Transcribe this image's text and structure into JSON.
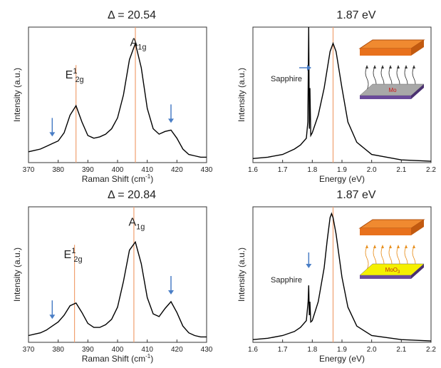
{
  "chart_data": [
    {
      "type": "line",
      "title": "Δ = 20.54",
      "x_label": "Raman Shift (cm",
      "x_label_sup": "-1",
      "x_label_end": ")",
      "y_label": "Intensity (a.u.)",
      "x": [
        370,
        372,
        374,
        376,
        378,
        380,
        382,
        384,
        386,
        388,
        390,
        392,
        394,
        396,
        398,
        400,
        402,
        404,
        406,
        408,
        410,
        412,
        414,
        416,
        418,
        420,
        422,
        424,
        426,
        428,
        430
      ],
      "values": [
        0.08,
        0.09,
        0.1,
        0.12,
        0.14,
        0.16,
        0.22,
        0.35,
        0.42,
        0.3,
        0.2,
        0.18,
        0.19,
        0.21,
        0.25,
        0.33,
        0.5,
        0.76,
        0.88,
        0.7,
        0.4,
        0.25,
        0.21,
        0.23,
        0.24,
        0.18,
        0.1,
        0.06,
        0.05,
        0.04,
        0.04
      ],
      "color": "#000000",
      "xlim": [
        370,
        430
      ],
      "ylim": [
        0,
        1
      ],
      "xticks": [
        370,
        380,
        390,
        400,
        410,
        420,
        430
      ],
      "vlines": [
        386,
        406
      ],
      "vline_color": "#f0a070",
      "annotations": [
        {
          "text": "E",
          "sup": "1",
          "sub": "2g"
        },
        {
          "text": "A",
          "sub": "1g"
        }
      ],
      "arrows_x": [
        378,
        418
      ],
      "arrow_color": "#4a7ec6"
    },
    {
      "type": "line",
      "title": "1.87 eV",
      "x_label": "Energy (eV)",
      "y_label": "Intensity (a.u.)",
      "x": [
        1.6,
        1.65,
        1.7,
        1.74,
        1.76,
        1.78,
        1.785,
        1.788,
        1.79,
        1.792,
        1.795,
        1.8,
        1.82,
        1.84,
        1.86,
        1.87,
        1.88,
        1.9,
        1.92,
        1.95,
        2.0,
        2.1,
        2.2
      ],
      "values": [
        0.03,
        0.04,
        0.06,
        0.1,
        0.13,
        0.18,
        0.3,
        1.0,
        0.25,
        0.55,
        0.2,
        0.22,
        0.35,
        0.55,
        0.82,
        0.88,
        0.82,
        0.55,
        0.3,
        0.15,
        0.06,
        0.02,
        0.01
      ],
      "color": "#000000",
      "xlim": [
        1.6,
        2.2
      ],
      "ylim": [
        0,
        1
      ],
      "xticks": [
        1.6,
        1.7,
        1.8,
        1.9,
        {
          "value": 2,
          "label": "2.0"
        },
        2.1,
        2.2
      ],
      "vlines": [
        1.87
      ],
      "vline_color": "#f0a070",
      "sapphire": "Sapphire",
      "inset": {
        "label": "Mo"
      }
    },
    {
      "type": "line",
      "title": "Δ = 20.84",
      "x_label": "Raman Shift (cm",
      "x_label_sup": "-1",
      "x_label_end": ")",
      "y_label": "Intensity (a.u.)",
      "x": [
        370,
        372,
        374,
        376,
        378,
        380,
        382,
        384,
        386,
        388,
        390,
        392,
        394,
        396,
        398,
        400,
        402,
        404,
        406,
        408,
        410,
        412,
        414,
        416,
        418,
        420,
        422,
        424,
        426,
        428,
        430
      ],
      "values": [
        0.05,
        0.06,
        0.07,
        0.09,
        0.12,
        0.15,
        0.2,
        0.27,
        0.29,
        0.22,
        0.14,
        0.11,
        0.11,
        0.13,
        0.17,
        0.26,
        0.45,
        0.68,
        0.74,
        0.58,
        0.33,
        0.21,
        0.19,
        0.25,
        0.3,
        0.22,
        0.12,
        0.07,
        0.05,
        0.04,
        0.04
      ],
      "color": "#000000",
      "xlim": [
        370,
        430
      ],
      "ylim": [
        0,
        1
      ],
      "xticks": [
        370,
        380,
        390,
        400,
        410,
        420,
        430
      ],
      "vlines": [
        385.5,
        405.5
      ],
      "vline_color": "#f0a070",
      "annotations": [
        {
          "text": "E",
          "sup": "1",
          "sub": "2g"
        },
        {
          "text": "A",
          "sub": "1g"
        }
      ],
      "arrows_x": [
        378,
        418
      ],
      "arrow_color": "#4a7ec6"
    },
    {
      "type": "line",
      "title": "1.87 eV",
      "x_label": "Energy (eV)",
      "y_label": "Intensity (a.u.)",
      "x": [
        1.6,
        1.65,
        1.7,
        1.74,
        1.76,
        1.78,
        1.786,
        1.788,
        1.79,
        1.792,
        1.795,
        1.8,
        1.82,
        1.84,
        1.85,
        1.86,
        1.865,
        1.87,
        1.88,
        1.9,
        1.92,
        1.95,
        2.0,
        2.1,
        2.2
      ],
      "values": [
        0.02,
        0.03,
        0.05,
        0.08,
        0.11,
        0.16,
        0.3,
        0.42,
        0.2,
        0.3,
        0.15,
        0.16,
        0.3,
        0.55,
        0.75,
        0.92,
        0.95,
        0.92,
        0.8,
        0.48,
        0.26,
        0.12,
        0.05,
        0.02,
        0.01
      ],
      "color": "#000000",
      "xlim": [
        1.6,
        2.2
      ],
      "ylim": [
        0,
        1
      ],
      "xticks": [
        1.6,
        1.7,
        1.8,
        1.9,
        {
          "value": 2,
          "label": "2.0"
        },
        2.1,
        2.2
      ],
      "vlines": [
        1.87
      ],
      "vline_color": "#f0a070",
      "sapphire": "Sapphire",
      "inset": {
        "label": "MoO",
        "sub": "3"
      }
    }
  ]
}
